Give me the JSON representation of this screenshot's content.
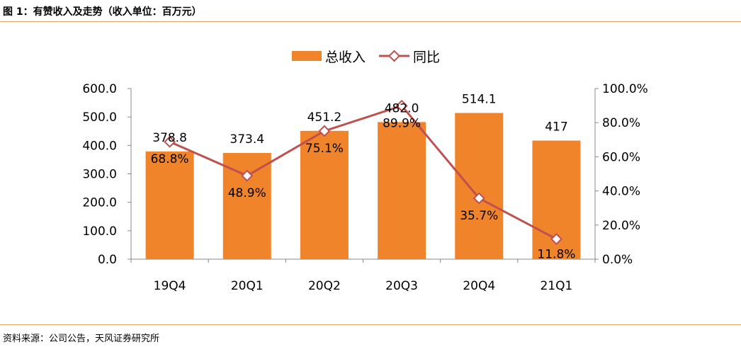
{
  "figure": {
    "title": "图 1：有赞收入及走势（收入单位：百万元）",
    "source": "资料来源：公司公告，天风证券研究所"
  },
  "colors": {
    "bar": "#f0842a",
    "line": "#c0504d",
    "marker_fill": "#ffffff",
    "axis": "#888888",
    "rule": "#e0a060"
  },
  "chart_data": {
    "type": "bar",
    "categories": [
      "19Q4",
      "20Q1",
      "20Q2",
      "20Q3",
      "20Q4",
      "21Q1"
    ],
    "series": [
      {
        "name": "总收入",
        "type": "bar",
        "axis": "left",
        "values": [
          378.8,
          373.4,
          451.2,
          482.0,
          514.1,
          417
        ],
        "labels": [
          "378.8",
          "373.4",
          "451.2",
          "482.0",
          "514.1",
          "417"
        ]
      },
      {
        "name": "同比",
        "type": "line",
        "axis": "right",
        "values": [
          68.8,
          48.9,
          75.1,
          89.9,
          35.7,
          11.8
        ],
        "labels": [
          "68.8%",
          "48.9%",
          "75.1%",
          "89.9%",
          "35.7%",
          "11.8%"
        ]
      }
    ],
    "y_left": {
      "range": [
        0,
        600
      ],
      "ticks": [
        0,
        100,
        200,
        300,
        400,
        500,
        600
      ],
      "tick_labels": [
        "0.0",
        "100.0",
        "200.0",
        "300.0",
        "400.0",
        "500.0",
        "600.0"
      ]
    },
    "y_right": {
      "range": [
        0,
        100
      ],
      "ticks": [
        0,
        20,
        40,
        60,
        80,
        100
      ],
      "tick_labels": [
        "0.0%",
        "20.0%",
        "40.0%",
        "60.0%",
        "80.0%",
        "100.0%"
      ]
    },
    "grid": false,
    "legend_position": "top-center"
  }
}
